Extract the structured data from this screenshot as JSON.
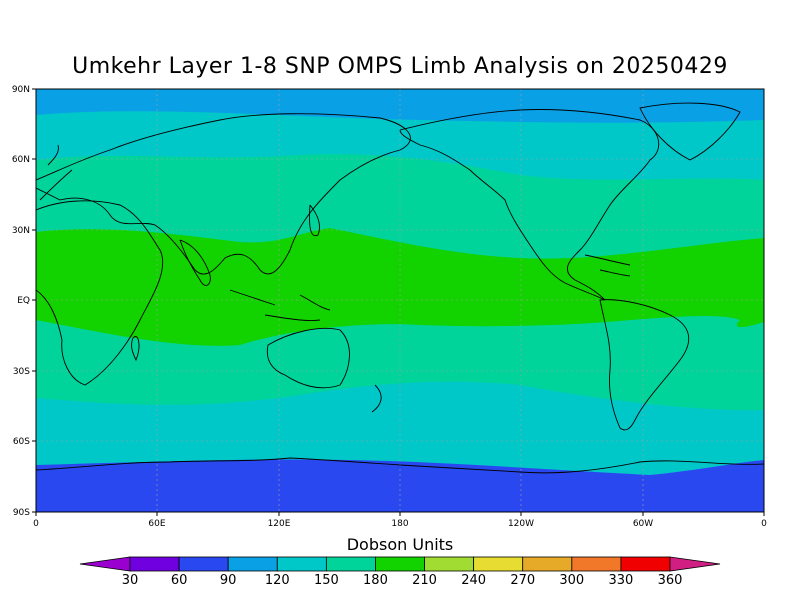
{
  "title": "Umkehr Layer 1-8 SNP OMPS Limb Analysis on 20250429",
  "lat_labels": [
    "90N",
    "60N",
    "30N",
    "EQ",
    "30S",
    "60S",
    "90S"
  ],
  "lon_labels": [
    "0",
    "60E",
    "120E",
    "180",
    "120W",
    "60W",
    "0"
  ],
  "colorbar": {
    "title": "Dobson Units",
    "ticks": [
      "30",
      "60",
      "90",
      "120",
      "150",
      "180",
      "210",
      "240",
      "270",
      "300",
      "330",
      "360"
    ],
    "colors": [
      "#9a00d0",
      "#7000e0",
      "#2a48f0",
      "#0aa0e6",
      "#00c8c8",
      "#00d49a",
      "#12d200",
      "#a0dc32",
      "#e6dc32",
      "#e6aa28",
      "#f07828",
      "#f00000",
      "#d01e82"
    ]
  },
  "map_colors": {
    "band_90_120": "#0aa0e6",
    "band_60_90": "#2a48f0",
    "band_120_150": "#00c8c8",
    "band_150_180": "#00d49a",
    "band_180_210": "#12d200",
    "coastline": "#000000"
  }
}
